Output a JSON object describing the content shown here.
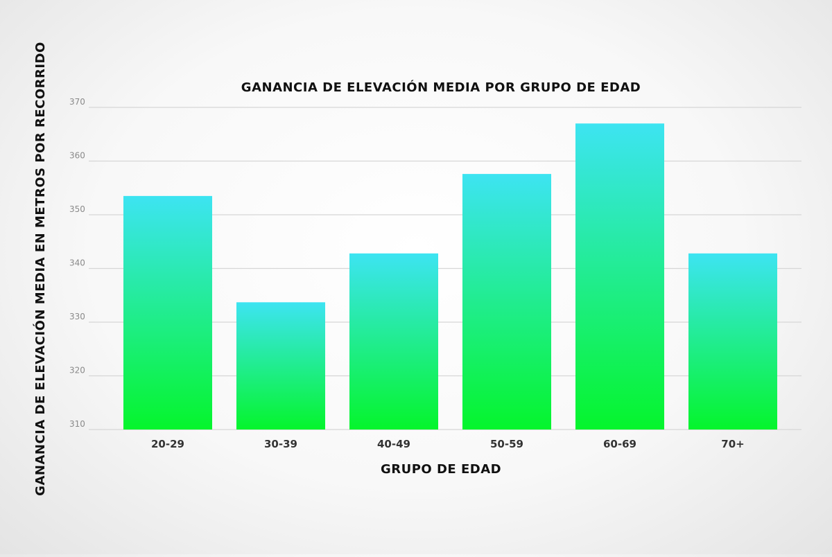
{
  "chart_data": {
    "type": "bar",
    "title": "GANANCIA DE ELEVACIÓN MEDIA POR GRUPO DE EDAD",
    "xlabel": "GRUPO DE EDAD",
    "ylabel": "GANANCIA DE ELEVACIÓN MEDIA EN METROS POR RECORRIDO",
    "categories": [
      "20-29",
      "30-39",
      "40-49",
      "50-59",
      "60-69",
      "70+"
    ],
    "values": [
      353.5,
      333.7,
      342.8,
      357.6,
      367,
      342.8
    ],
    "ylim": [
      310,
      370
    ],
    "yticks": [
      "310",
      "320",
      "330",
      "340",
      "350",
      "360",
      "370"
    ],
    "grid": true,
    "bar_gradient": {
      "top": "#3de4f2",
      "bottom": "#05f52c"
    }
  }
}
